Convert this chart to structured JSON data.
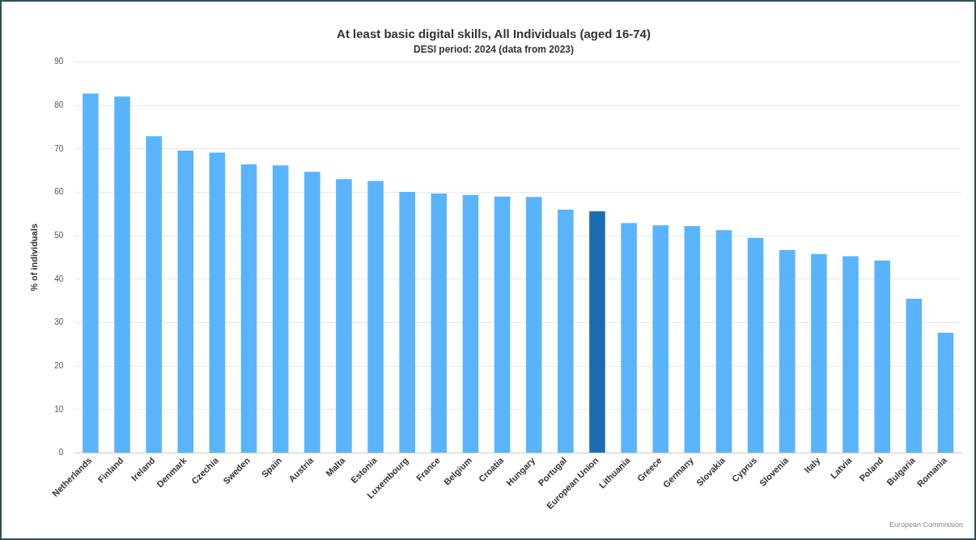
{
  "chart_data": {
    "type": "bar",
    "title": "At least basic digital skills, All Individuals (aged 16-74)",
    "subtitle": "DESI period: 2024 (data from 2023)",
    "ylabel": "% of individuals",
    "categories": [
      "Netherlands",
      "Finland",
      "Ireland",
      "Denmark",
      "Czechia",
      "Sweden",
      "Spain",
      "Austria",
      "Malta",
      "Estonia",
      "Luxembourg",
      "France",
      "Belgium",
      "Croatia",
      "Hungary",
      "Portugal",
      "European Union",
      "Lithuania",
      "Greece",
      "Germany",
      "Slovakia",
      "Cyprus",
      "Slovenia",
      "Italy",
      "Latvia",
      "Poland",
      "Bulgaria",
      "Romania"
    ],
    "values": [
      82.7,
      82.0,
      72.9,
      69.6,
      69.1,
      66.4,
      66.2,
      64.7,
      63.0,
      62.6,
      60.1,
      59.7,
      59.4,
      59.0,
      58.9,
      56.0,
      55.6,
      52.9,
      52.4,
      52.2,
      51.3,
      49.5,
      46.7,
      45.8,
      45.3,
      44.3,
      35.5,
      27.7
    ],
    "colors": [
      "#5ab4fb",
      "#5ab4fb",
      "#5ab4fb",
      "#5ab4fb",
      "#5ab4fb",
      "#5ab4fb",
      "#5ab4fb",
      "#5ab4fb",
      "#5ab4fb",
      "#5ab4fb",
      "#5ab4fb",
      "#5ab4fb",
      "#5ab4fb",
      "#5ab4fb",
      "#5ab4fb",
      "#5ab4fb",
      "#1a6db3",
      "#5ab4fb",
      "#5ab4fb",
      "#5ab4fb",
      "#5ab4fb",
      "#5ab4fb",
      "#5ab4fb",
      "#5ab4fb",
      "#5ab4fb",
      "#5ab4fb",
      "#5ab4fb",
      "#5ab4fb"
    ],
    "ylim": [
      0,
      90
    ],
    "yticks": [
      0,
      10,
      20,
      30,
      40,
      50,
      60,
      70,
      80,
      90
    ],
    "grid": "y",
    "legend": false,
    "annotations": [
      "European Commission"
    ]
  }
}
